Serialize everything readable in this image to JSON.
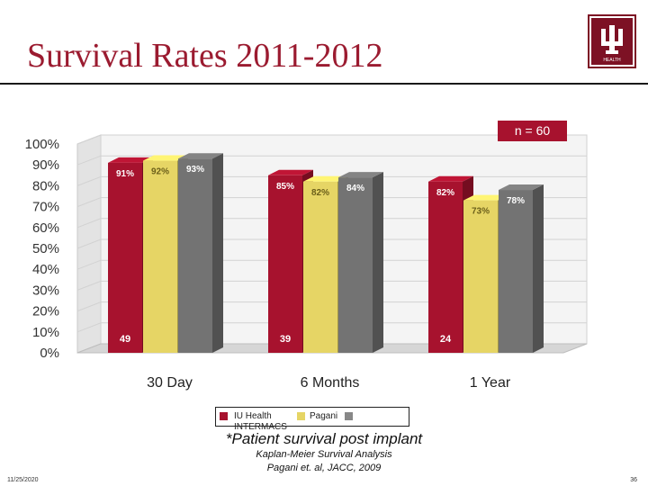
{
  "slide": {
    "title": "Survival Rates 2011-2012",
    "footer_date": "11/25/2020",
    "footer_page": "36"
  },
  "logo": {
    "icon": "trident-icon",
    "word": "HEALTH"
  },
  "annotations": {
    "badge": "n = 60",
    "note_main": "*Patient survival post implant",
    "note_line1": "Kaplan-Meier Survival Analysis",
    "note_line2": "Pagani et. al, JACC, 2009"
  },
  "legend": {
    "entries": [
      "IU Health",
      "Pagani",
      "INTERMACS"
    ],
    "colors": [
      "#a7122e",
      "#e6d565",
      "#888888"
    ]
  },
  "chart_data": {
    "type": "bar",
    "categories": [
      "30 Day",
      "6 Months",
      "1 Year"
    ],
    "series": [
      {
        "name": "IU Health",
        "values": [
          91,
          85,
          82
        ],
        "counts": [
          "49",
          "39",
          "24"
        ]
      },
      {
        "name": "Pagani",
        "values": [
          92,
          82,
          73
        ]
      },
      {
        "name": "INTERMACS",
        "values": [
          93,
          84,
          78
        ]
      }
    ],
    "value_labels": [
      [
        "91%",
        "92%",
        "93%"
      ],
      [
        "85%",
        "82%",
        "84%"
      ],
      [
        "82%",
        "73%",
        "78%"
      ]
    ],
    "y_ticks": [
      "0%",
      "10%",
      "20%",
      "30%",
      "40%",
      "50%",
      "60%",
      "70%",
      "80%",
      "90%",
      "100%"
    ],
    "ylim": [
      0,
      100
    ],
    "colors": [
      "#a7122e",
      "#e6d565",
      "#737373"
    ],
    "style": "3d-bar",
    "grid": true
  }
}
